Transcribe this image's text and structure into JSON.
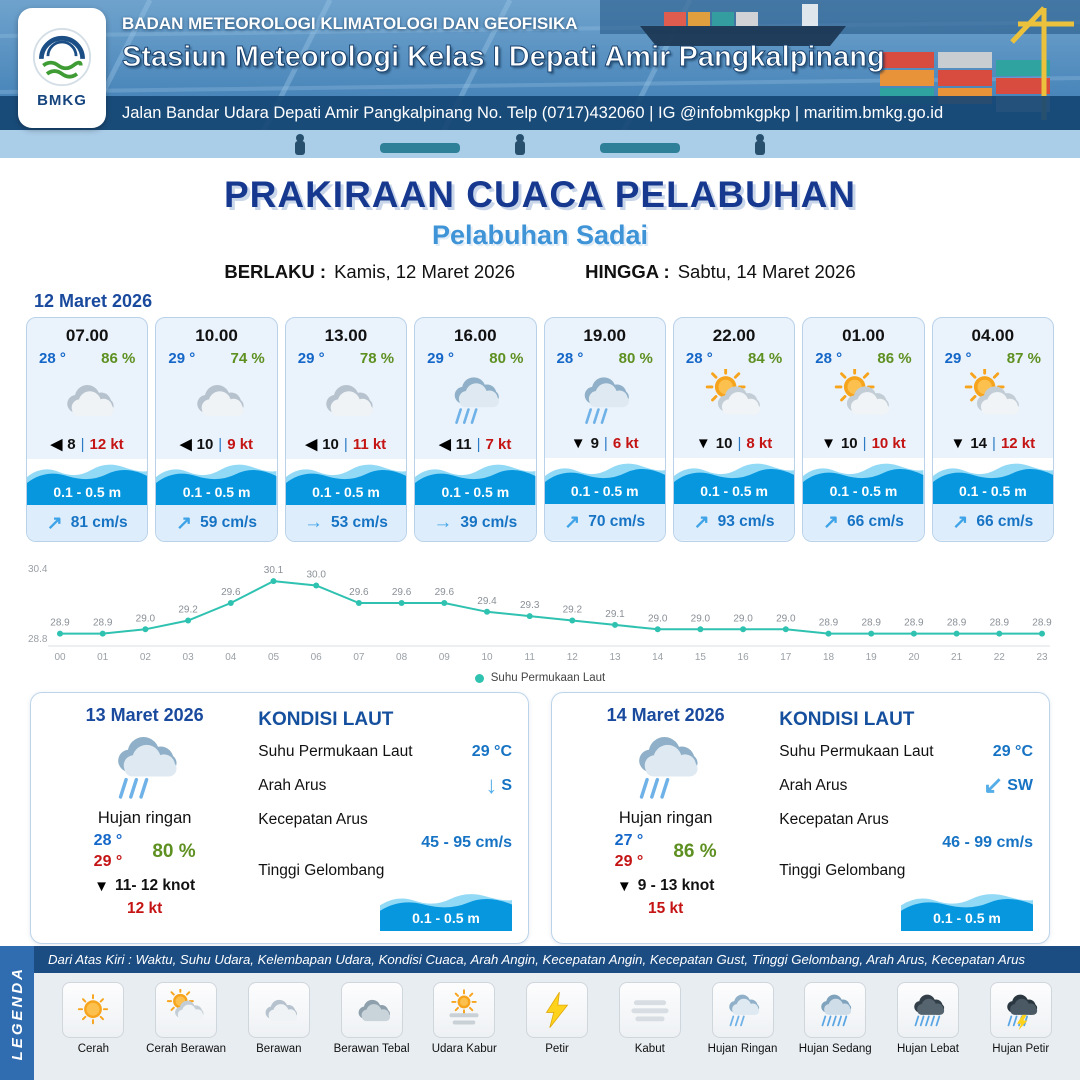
{
  "header": {
    "logo_text": "BMKG",
    "org": "BADAN METEOROLOGI KLIMATOLOGI DAN GEOFISIKA",
    "station": "Stasiun Meteorologi Kelas I Depati Amir Pangkalpinang",
    "address": "Jalan Bandar Udara Depati Amir Pangkalpinang No. Telp (0717)432060 | IG @infobmkgpkp | maritim.bmkg.go.id"
  },
  "title": {
    "main": "PRAKIRAAN CUACA PELABUHAN",
    "port": "Pelabuhan Sadai",
    "valid_from_label": "BERLAKU :",
    "valid_from": "Kamis, 12 Maret 2026",
    "valid_to_label": "HINGGA :",
    "valid_to": "Sabtu, 14 Maret 2026"
  },
  "forecast": {
    "date": "12 Maret 2026",
    "separator": "|",
    "cards": [
      {
        "time": "07.00",
        "temp": "28 °",
        "rh": "86 %",
        "icon": "berawan",
        "wind_arrow": "◀",
        "wind": "8",
        "gust": "12 kt",
        "wave": "0.1 - 0.5 m",
        "cur_arrow": "↗",
        "current": "81 cm/s"
      },
      {
        "time": "10.00",
        "temp": "29 °",
        "rh": "74 %",
        "icon": "berawan",
        "wind_arrow": "◀",
        "wind": "10",
        "gust": "9 kt",
        "wave": "0.1 - 0.5 m",
        "cur_arrow": "↗",
        "current": "59 cm/s"
      },
      {
        "time": "13.00",
        "temp": "29 °",
        "rh": "78 %",
        "icon": "berawan",
        "wind_arrow": "◀",
        "wind": "10",
        "gust": "11 kt",
        "wave": "0.1 - 0.5 m",
        "cur_arrow": "→",
        "current": "53 cm/s"
      },
      {
        "time": "16.00",
        "temp": "29 °",
        "rh": "80 %",
        "icon": "hujan-ringan",
        "wind_arrow": "◀",
        "wind": "11",
        "gust": "7 kt",
        "wave": "0.1 - 0.5 m",
        "cur_arrow": "→",
        "current": "39 cm/s"
      },
      {
        "time": "19.00",
        "temp": "28 °",
        "rh": "80 %",
        "icon": "hujan-ringan",
        "wind_arrow": "▼",
        "wind": "9",
        "gust": "6 kt",
        "wave": "0.1 - 0.5 m",
        "cur_arrow": "↗",
        "current": "70 cm/s"
      },
      {
        "time": "22.00",
        "temp": "28 °",
        "rh": "84 %",
        "icon": "cerah-berawan",
        "wind_arrow": "▼",
        "wind": "10",
        "gust": "8 kt",
        "wave": "0.1 - 0.5 m",
        "cur_arrow": "↗",
        "current": "93 cm/s"
      },
      {
        "time": "01.00",
        "temp": "28 °",
        "rh": "86 %",
        "icon": "cerah-berawan",
        "wind_arrow": "▼",
        "wind": "10",
        "gust": "10 kt",
        "wave": "0.1 - 0.5 m",
        "cur_arrow": "↗",
        "current": "66 cm/s"
      },
      {
        "time": "04.00",
        "temp": "29 °",
        "rh": "87 %",
        "icon": "cerah-berawan",
        "wind_arrow": "▼",
        "wind": "14",
        "gust": "12 kt",
        "wave": "0.1 - 0.5 m",
        "cur_arrow": "↗",
        "current": "66 cm/s"
      }
    ]
  },
  "chart_data": {
    "type": "line",
    "series_name": "Suhu Permukaan Laut",
    "x": [
      "00",
      "01",
      "02",
      "03",
      "04",
      "05",
      "06",
      "07",
      "08",
      "09",
      "10",
      "11",
      "12",
      "13",
      "14",
      "15",
      "16",
      "17",
      "18",
      "19",
      "20",
      "21",
      "22",
      "23"
    ],
    "values": [
      28.9,
      28.9,
      29.0,
      29.2,
      29.6,
      30.1,
      30.0,
      29.6,
      29.6,
      29.6,
      29.4,
      29.3,
      29.2,
      29.1,
      29.0,
      29.0,
      29.0,
      29.0,
      28.9,
      28.9,
      28.9,
      28.9,
      28.9,
      28.9
    ],
    "ylim": [
      28.8,
      30.4
    ],
    "line_color": "#2fc2b0",
    "grid": false,
    "legend_position": "bottom"
  },
  "days": [
    {
      "date": "13 Maret 2026",
      "icon": "hujan-ringan",
      "weather": "Hujan ringan",
      "temp_min": "28 °",
      "temp_max": "29 °",
      "rh": "80 %",
      "wind_arrow": "▼",
      "wind": "11- 12 knot",
      "gust": "12 kt",
      "sea": {
        "title": "KONDISI LAUT",
        "sst_label": "Suhu Permukaan Laut",
        "sst": "29 °C",
        "current_dir_label": "Arah Arus",
        "current_dir_arrow": "↓",
        "current_dir": "S",
        "current_speed_label": "Kecepatan Arus",
        "current_speed": "45  - 95 cm/s",
        "wave_label": "Tinggi Gelombang",
        "wave": "0.1 - 0.5 m"
      }
    },
    {
      "date": "14 Maret 2026",
      "icon": "hujan-ringan",
      "weather": "Hujan ringan",
      "temp_min": "27 °",
      "temp_max": "29 °",
      "rh": "86 %",
      "wind_arrow": "▼",
      "wind": "9  - 13 knot",
      "gust": "15 kt",
      "sea": {
        "title": "KONDISI LAUT",
        "sst_label": "Suhu Permukaan Laut",
        "sst": "29 °C",
        "current_dir_label": "Arah Arus",
        "current_dir_arrow": "↙",
        "current_dir": "SW",
        "current_speed_label": "Kecepatan Arus",
        "current_speed": "46  - 99 cm/s",
        "wave_label": "Tinggi Gelombang",
        "wave": "0.1 - 0.5 m"
      }
    }
  ],
  "legend": {
    "title": "LEGENDA",
    "note": "Dari Atas Kiri : Waktu, Suhu Udara, Kelembapan Udara, Kondisi Cuaca, Arah Angin, Kecepatan Angin, Kecepatan Gust, Tinggi Gelombang, Arah Arus, Kecepatan Arus",
    "items": [
      {
        "label": "Cerah",
        "icon": "cerah"
      },
      {
        "label": "Cerah Berawan",
        "icon": "cerah-berawan"
      },
      {
        "label": "Berawan",
        "icon": "berawan"
      },
      {
        "label": "Berawan Tebal",
        "icon": "berawan-tebal"
      },
      {
        "label": "Udara Kabur",
        "icon": "udara-kabur"
      },
      {
        "label": "Petir",
        "icon": "petir"
      },
      {
        "label": "Kabut",
        "icon": "kabut"
      },
      {
        "label": "Hujan Ringan",
        "icon": "hujan-ringan"
      },
      {
        "label": "Hujan Sedang",
        "icon": "hujan-sedang"
      },
      {
        "label": "Hujan Lebat",
        "icon": "hujan-lebat"
      },
      {
        "label": "Hujan Petir",
        "icon": "hujan-petir"
      }
    ]
  }
}
